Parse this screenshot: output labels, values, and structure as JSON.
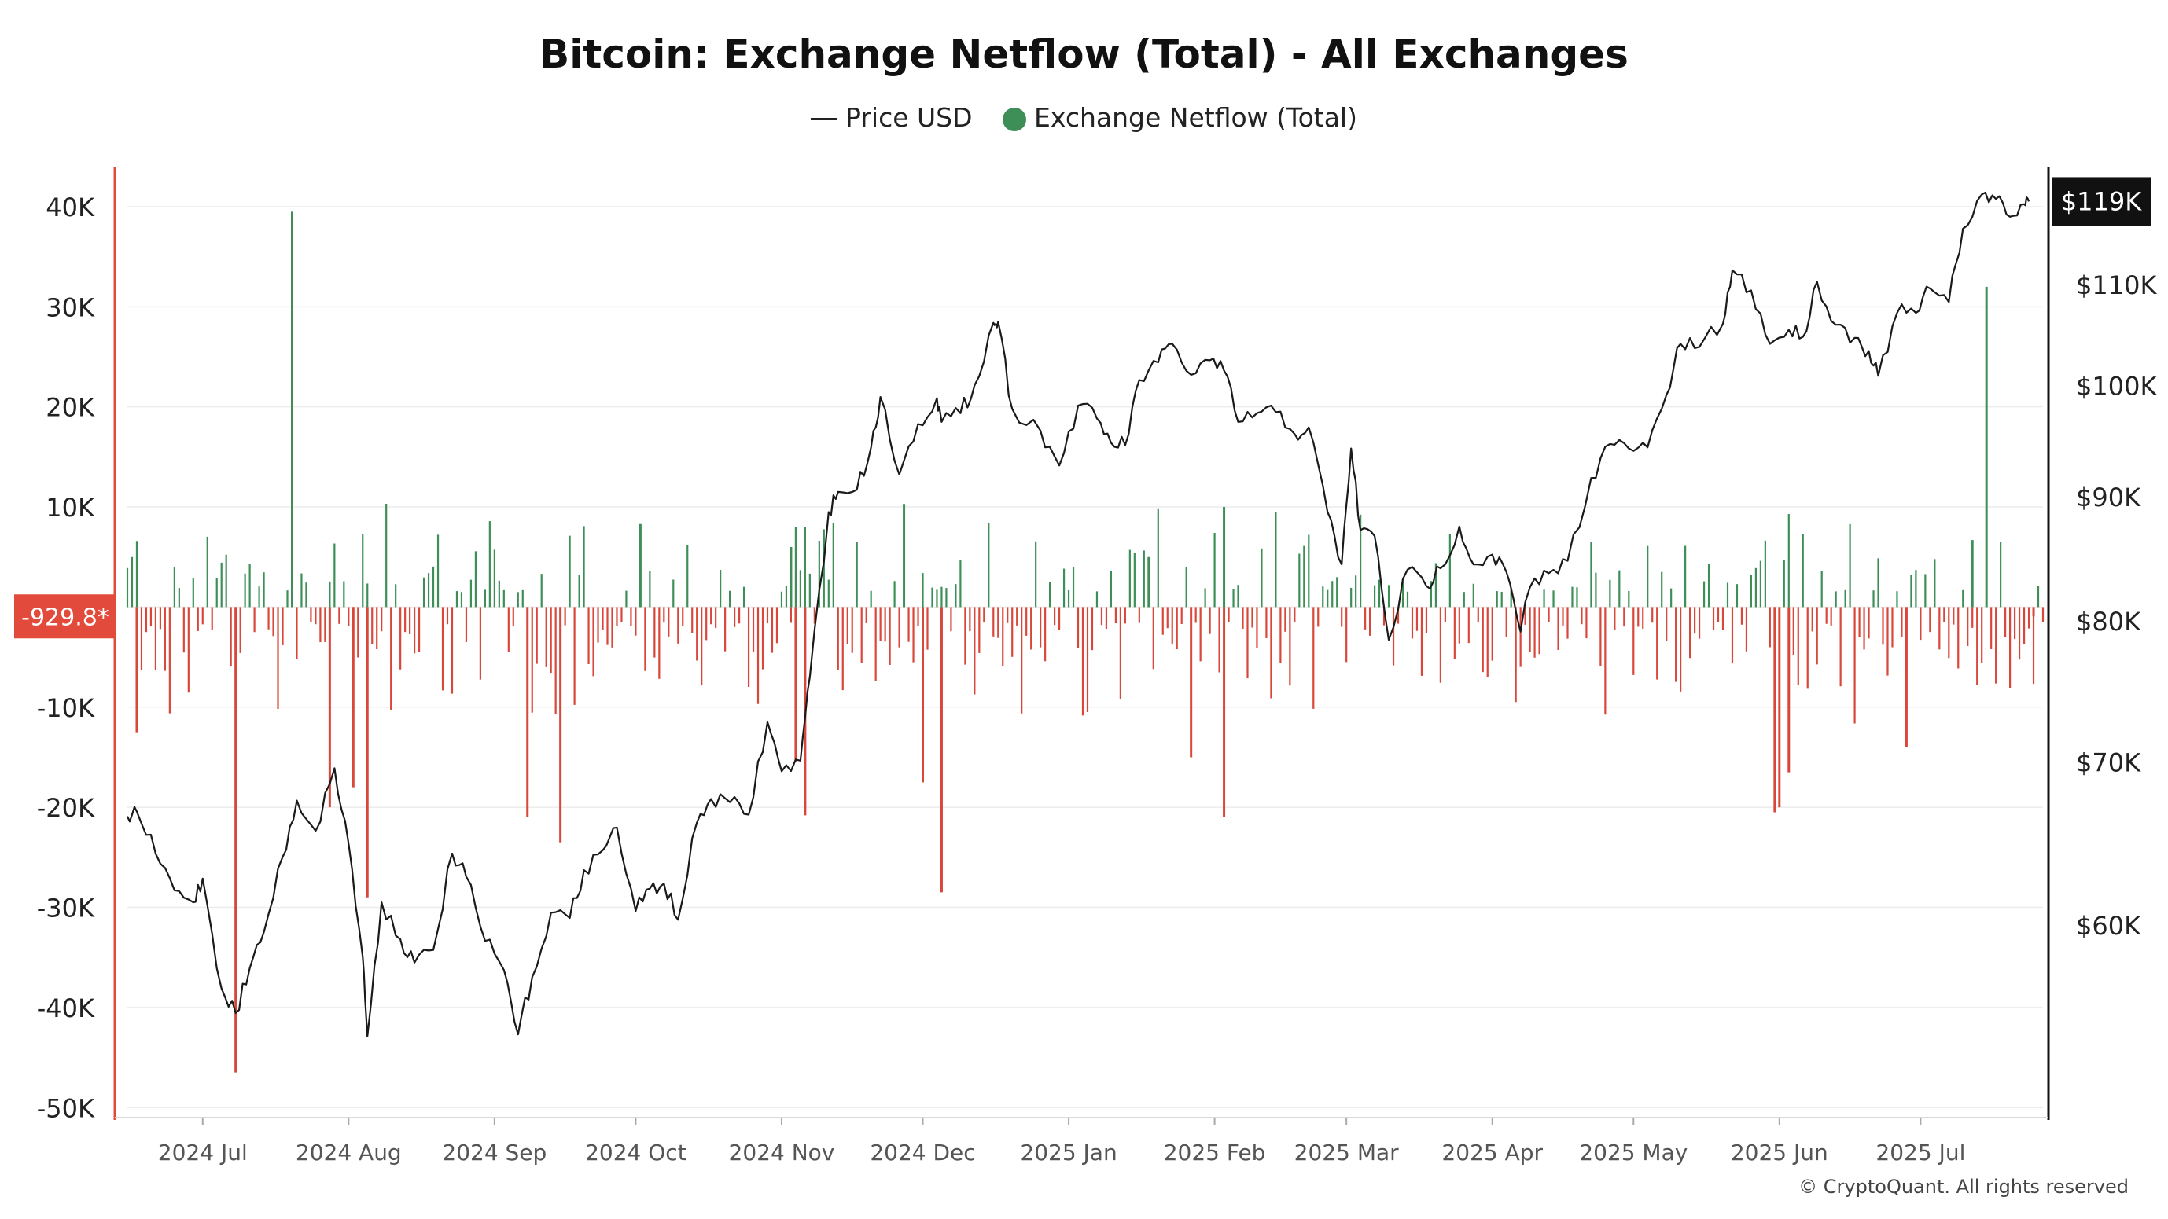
{
  "chart_data": {
    "type": "bar+line",
    "title": "Bitcoin: Exchange Netflow (Total) - All Exchanges",
    "legend": [
      "Price USD",
      "Exchange Netflow (Total)"
    ],
    "legend_placement": "top-center",
    "colors": {
      "inflow": "#3d8f57",
      "outflow": "#d9473b",
      "price": "#1a1a1a",
      "left_axis_line": "#e24a3b",
      "current_value_bg": "#e24a3b",
      "current_price_bg": "#111111"
    },
    "x_axis": {
      "start": "2024-06-15",
      "end": "2025-07-27",
      "ticks": [
        {
          "date": "2024-07-01",
          "label": "2024 Jul"
        },
        {
          "date": "2024-08-01",
          "label": "2024 Aug"
        },
        {
          "date": "2024-09-01",
          "label": "2024 Sep"
        },
        {
          "date": "2024-10-01",
          "label": "2024 Oct"
        },
        {
          "date": "2024-11-01",
          "label": "2024 Nov"
        },
        {
          "date": "2024-12-01",
          "label": "2024 Dec"
        },
        {
          "date": "2025-01-01",
          "label": "2025 Jan"
        },
        {
          "date": "2025-02-01",
          "label": "2025 Feb"
        },
        {
          "date": "2025-03-01",
          "label": "2025 Mar"
        },
        {
          "date": "2025-04-01",
          "label": "2025 Apr"
        },
        {
          "date": "2025-05-01",
          "label": "2025 May"
        },
        {
          "date": "2025-06-01",
          "label": "2025 Jun"
        },
        {
          "date": "2025-07-01",
          "label": "2025 Jul"
        }
      ]
    },
    "y_left": {
      "ylim": [
        -51000,
        44000
      ],
      "ticks": [
        40000,
        30000,
        20000,
        10000,
        0,
        -10000,
        -20000,
        -30000,
        -40000,
        -50000
      ],
      "tick_labels": [
        "40K",
        "30K",
        "20K",
        "10K",
        "",
        "-10K",
        "-20K",
        "-30K",
        "-40K",
        "-50K"
      ],
      "current_label": "-929.8*"
    },
    "y_right": {
      "scale": "log",
      "ylim": [
        50000,
        123000
      ],
      "ticks": [
        110000,
        100000,
        90000,
        80000,
        70000,
        60000
      ],
      "tick_labels": [
        "$110K",
        "$100K",
        "$90K",
        "$80K",
        "$70K",
        "$60K"
      ],
      "current_label": "$119K",
      "current_value": 119000
    },
    "price_series": {
      "name": "Price USD",
      "points": [
        [
          "2024-06-15",
          66500
        ],
        [
          "2024-06-17",
          66800
        ],
        [
          "2024-06-21",
          64200
        ],
        [
          "2024-06-25",
          62000
        ],
        [
          "2024-06-29",
          61300
        ],
        [
          "2024-07-01",
          62700
        ],
        [
          "2024-07-05",
          56500
        ],
        [
          "2024-07-08",
          55200
        ],
        [
          "2024-07-11",
          57600
        ],
        [
          "2024-07-14",
          59600
        ],
        [
          "2024-07-18",
          64000
        ],
        [
          "2024-07-21",
          67500
        ],
        [
          "2024-07-25",
          65600
        ],
        [
          "2024-07-29",
          69600
        ],
        [
          "2024-08-01",
          64800
        ],
        [
          "2024-08-04",
          58200
        ],
        [
          "2024-08-05",
          54000
        ],
        [
          "2024-08-08",
          61300
        ],
        [
          "2024-08-12",
          59200
        ],
        [
          "2024-08-15",
          57900
        ],
        [
          "2024-08-19",
          58600
        ],
        [
          "2024-08-23",
          64200
        ],
        [
          "2024-08-26",
          62800
        ],
        [
          "2024-08-30",
          59100
        ],
        [
          "2024-09-03",
          57500
        ],
        [
          "2024-09-06",
          54100
        ],
        [
          "2024-09-09",
          57100
        ],
        [
          "2024-09-13",
          60700
        ],
        [
          "2024-09-17",
          60400
        ],
        [
          "2024-09-20",
          63200
        ],
        [
          "2024-09-24",
          64400
        ],
        [
          "2024-09-27",
          65800
        ],
        [
          "2024-10-01",
          60800
        ],
        [
          "2024-10-04",
          62100
        ],
        [
          "2024-10-07",
          62400
        ],
        [
          "2024-10-10",
          60300
        ],
        [
          "2024-10-14",
          66100
        ],
        [
          "2024-10-17",
          67600
        ],
        [
          "2024-10-21",
          67400
        ],
        [
          "2024-10-25",
          66600
        ],
        [
          "2024-10-29",
          72700
        ],
        [
          "2024-11-01",
          69400
        ],
        [
          "2024-11-05",
          70100
        ],
        [
          "2024-11-07",
          75900
        ],
        [
          "2024-11-11",
          88700
        ],
        [
          "2024-11-13",
          90400
        ],
        [
          "2024-11-17",
          90600
        ],
        [
          "2024-11-20",
          94300
        ],
        [
          "2024-11-22",
          98900
        ],
        [
          "2024-11-26",
          91900
        ],
        [
          "2024-11-30",
          96400
        ],
        [
          "2024-12-04",
          98800
        ],
        [
          "2024-12-05",
          96600
        ],
        [
          "2024-12-09",
          97400
        ],
        [
          "2024-12-12",
          100000
        ],
        [
          "2024-12-16",
          106100
        ],
        [
          "2024-12-17",
          106200
        ],
        [
          "2024-12-20",
          97800
        ],
        [
          "2024-12-26",
          95800
        ],
        [
          "2024-12-30",
          92700
        ],
        [
          "2025-01-03",
          98100
        ],
        [
          "2025-01-07",
          96900
        ],
        [
          "2025-01-10",
          94700
        ],
        [
          "2025-01-13",
          94500
        ],
        [
          "2025-01-16",
          100500
        ],
        [
          "2025-01-20",
          102200
        ],
        [
          "2025-01-23",
          104000
        ],
        [
          "2025-01-27",
          101000
        ],
        [
          "2025-01-31",
          102400
        ],
        [
          "2025-02-03",
          101400
        ],
        [
          "2025-02-06",
          96600
        ],
        [
          "2025-02-10",
          97400
        ],
        [
          "2025-02-14",
          97500
        ],
        [
          "2025-02-18",
          95500
        ],
        [
          "2025-02-21",
          96100
        ],
        [
          "2025-02-25",
          88700
        ],
        [
          "2025-02-28",
          84400
        ],
        [
          "2025-03-02",
          94200
        ],
        [
          "2025-03-04",
          87200
        ],
        [
          "2025-03-07",
          86700
        ],
        [
          "2025-03-10",
          78600
        ],
        [
          "2025-03-14",
          84000
        ],
        [
          "2025-03-18",
          82700
        ],
        [
          "2025-03-21",
          84100
        ],
        [
          "2025-03-25",
          87500
        ],
        [
          "2025-03-28",
          84400
        ],
        [
          "2025-04-01",
          85200
        ],
        [
          "2025-04-04",
          83800
        ],
        [
          "2025-04-07",
          79200
        ],
        [
          "2025-04-09",
          82600
        ],
        [
          "2025-04-13",
          83700
        ],
        [
          "2025-04-17",
          84700
        ],
        [
          "2025-04-22",
          91600
        ],
        [
          "2025-04-26",
          94600
        ],
        [
          "2025-04-30",
          94200
        ],
        [
          "2025-05-04",
          94300
        ],
        [
          "2025-05-08",
          99100
        ],
        [
          "2025-05-11",
          104000
        ],
        [
          "2025-05-15",
          103700
        ],
        [
          "2025-05-20",
          106000
        ],
        [
          "2025-05-22",
          111500
        ],
        [
          "2025-05-26",
          109400
        ],
        [
          "2025-05-30",
          104000
        ],
        [
          "2025-06-03",
          105400
        ],
        [
          "2025-06-06",
          104700
        ],
        [
          "2025-06-09",
          110300
        ],
        [
          "2025-06-13",
          105900
        ],
        [
          "2025-06-17",
          104600
        ],
        [
          "2025-06-20",
          103300
        ],
        [
          "2025-06-22",
          100900
        ],
        [
          "2025-06-26",
          107100
        ],
        [
          "2025-06-30",
          107100
        ],
        [
          "2025-07-03",
          109600
        ],
        [
          "2025-07-07",
          108200
        ],
        [
          "2025-07-10",
          116000
        ],
        [
          "2025-07-14",
          119800
        ],
        [
          "2025-07-17",
          119300
        ],
        [
          "2025-07-20",
          117300
        ],
        [
          "2025-07-23",
          118700
        ],
        [
          "2025-07-24",
          119000
        ]
      ]
    },
    "netflow_series": {
      "name": "Exchange Netflow (Total)",
      "spikes": [
        [
          "2024-07-20",
          39500
        ],
        [
          "2024-07-08",
          -46500
        ],
        [
          "2024-08-05",
          -29000
        ],
        [
          "2024-07-28",
          -20000
        ],
        [
          "2024-08-02",
          -18000
        ],
        [
          "2024-09-08",
          -21000
        ],
        [
          "2024-09-15",
          -23500
        ],
        [
          "2024-11-06",
          -20800
        ],
        [
          "2024-11-04",
          -15500
        ],
        [
          "2024-12-05",
          -28500
        ],
        [
          "2024-12-01",
          -17500
        ],
        [
          "2025-01-27",
          -15000
        ],
        [
          "2025-02-03",
          -21000
        ],
        [
          "2025-05-31",
          -20500
        ],
        [
          "2025-06-01",
          -20000
        ],
        [
          "2025-06-03",
          -16500
        ],
        [
          "2025-07-15",
          32000
        ],
        [
          "2025-06-28",
          -14000
        ],
        [
          "2024-06-17",
          -12500
        ],
        [
          "2024-11-27",
          10300
        ],
        [
          "2024-10-02",
          8300
        ],
        [
          "2025-02-03",
          10000
        ],
        [
          "2025-01-18",
          5000
        ],
        [
          "2025-07-12",
          6700
        ],
        [
          "2024-11-03",
          6000
        ],
        [
          "2025-07-25",
          -929.8
        ]
      ]
    }
  },
  "copyright": "© CryptoQuant. All rights reserved"
}
